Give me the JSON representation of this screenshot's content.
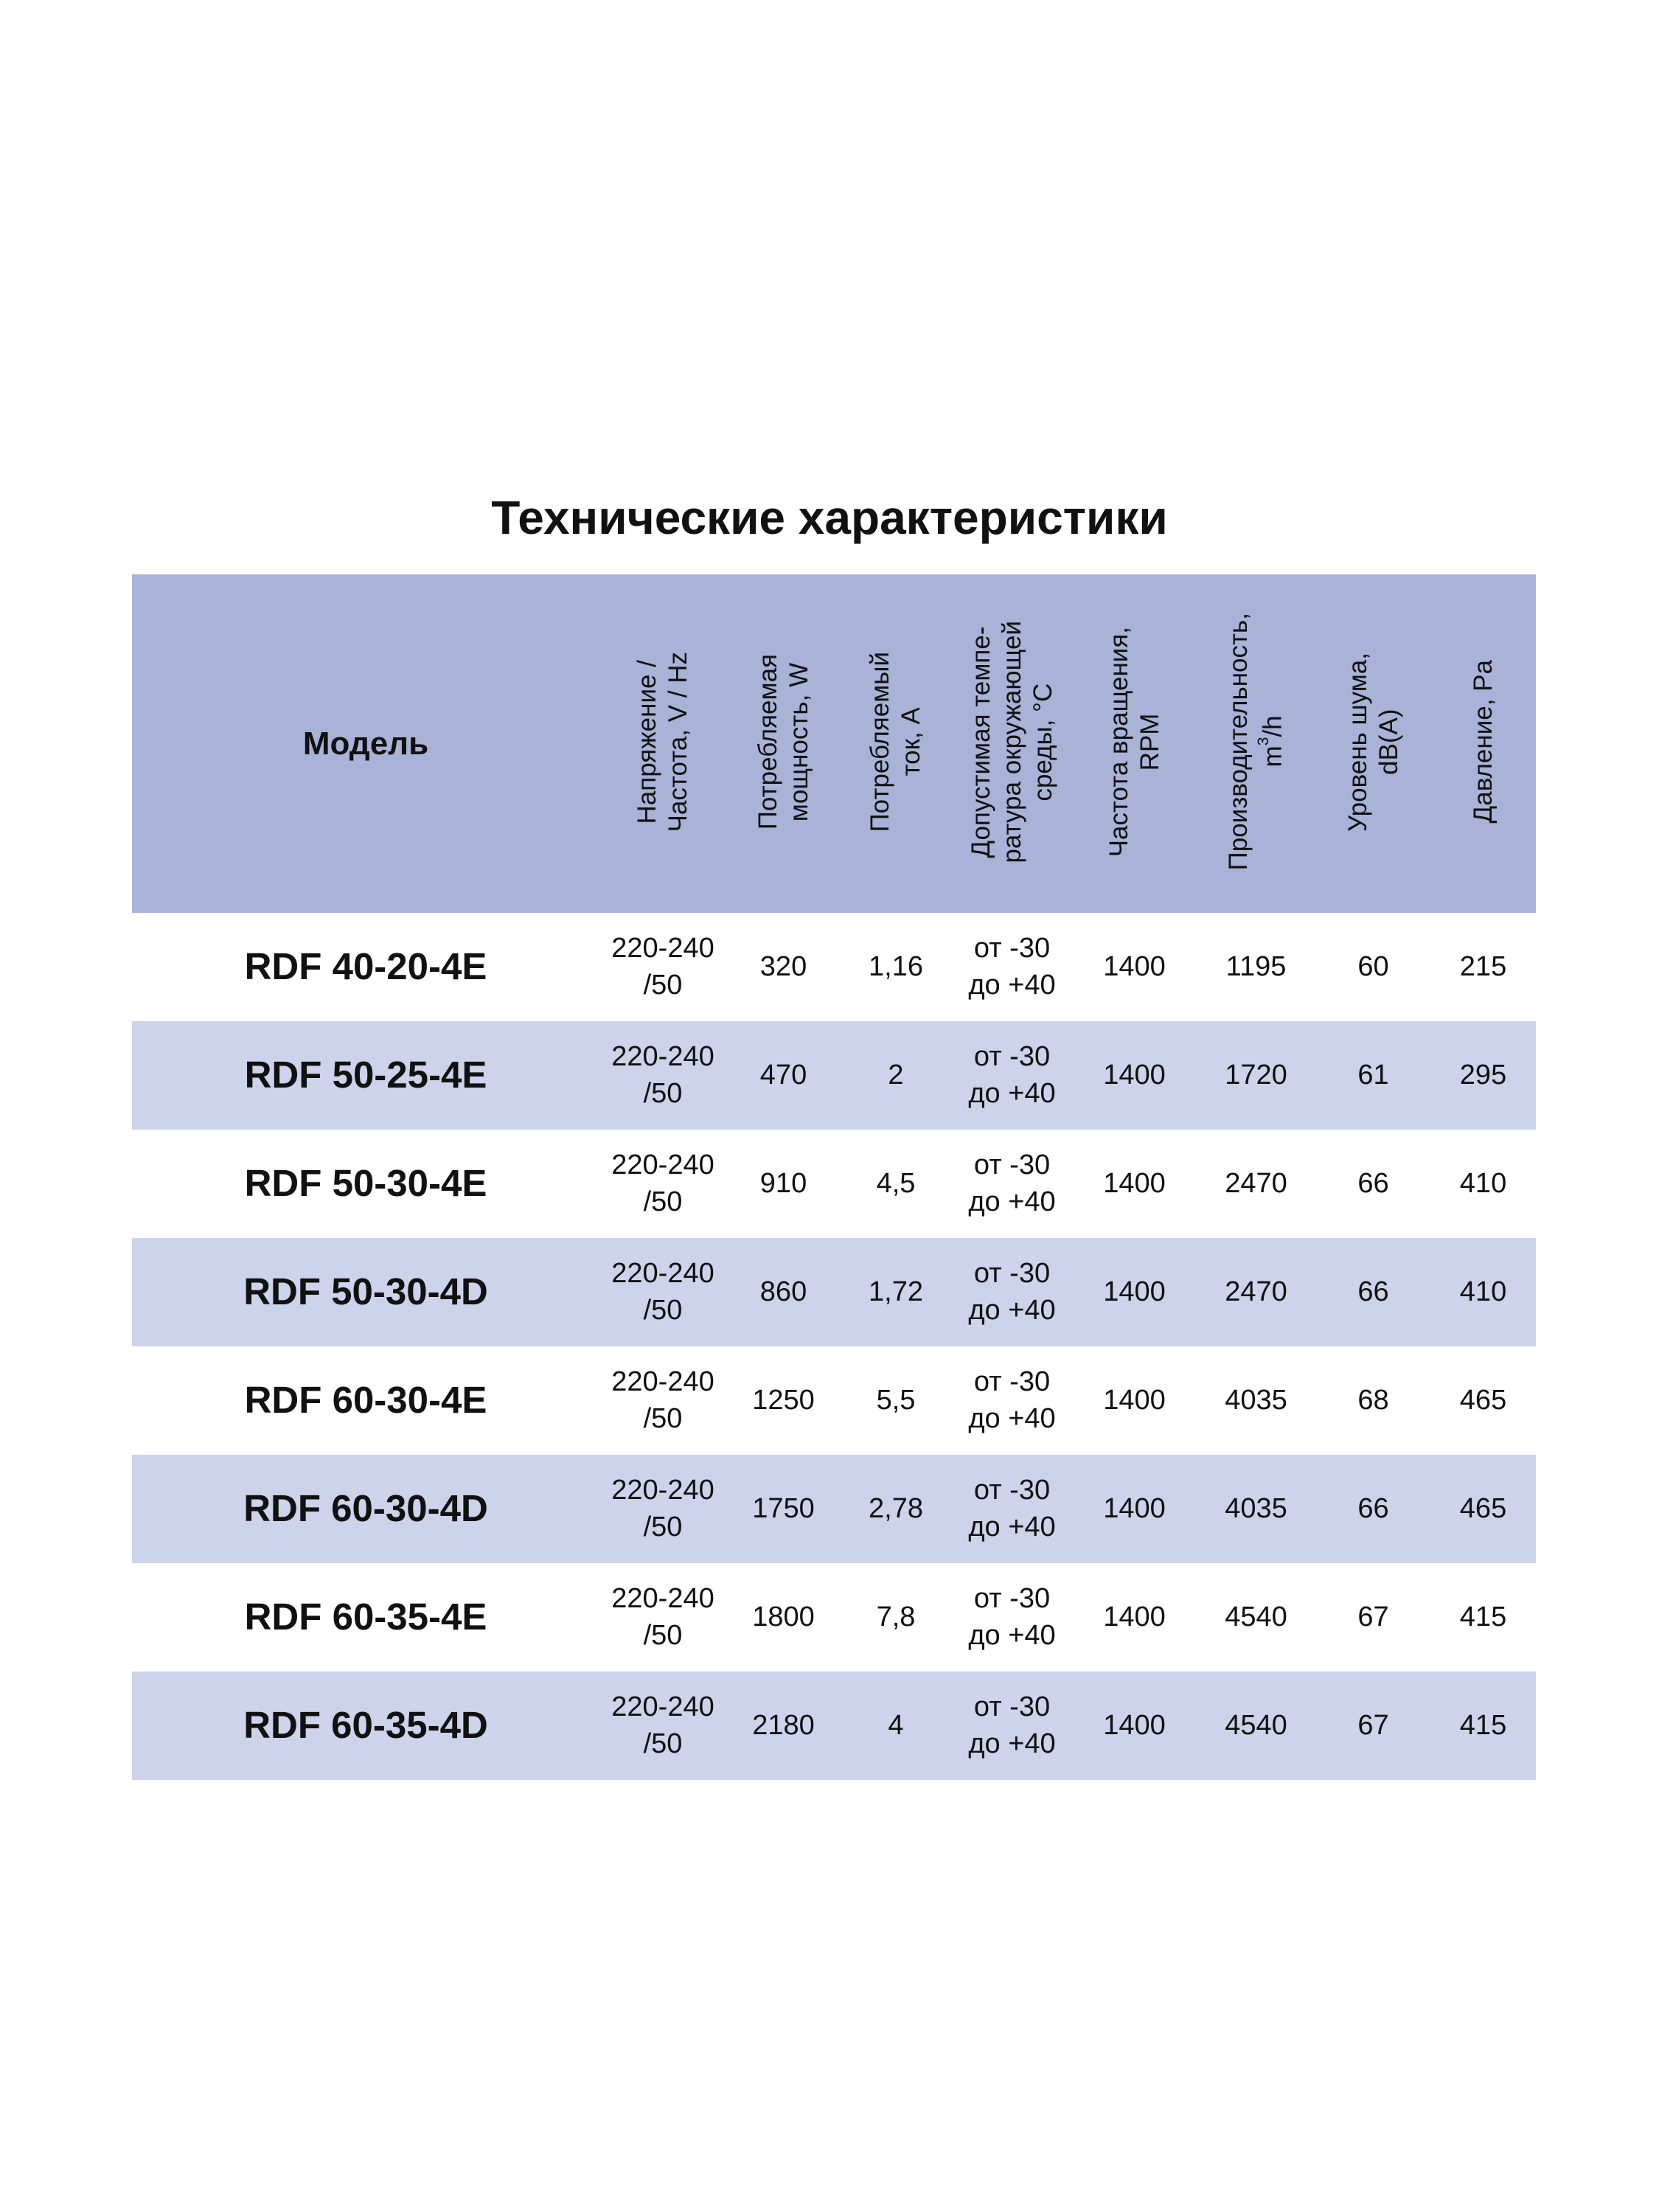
{
  "title": "Технические характеристики",
  "colors": {
    "header_bg": "#a8b3d7",
    "alt_row_bg": "#ccd3ea"
  },
  "columns": [
    {
      "label": "Модель"
    },
    {
      "line1": "Напряжение /",
      "line2": "Частота, V / Hz"
    },
    {
      "line1": "Потребляемая",
      "line2": "мощность, W"
    },
    {
      "line1": "Потребляемый",
      "line2": "ток, А"
    },
    {
      "line1": "Допустимая темпе-",
      "line2": "ратура окружающей",
      "line3": "среды, °С"
    },
    {
      "line1": "Частота вращения,",
      "line2": "RPM"
    },
    {
      "line1": "Производительность,",
      "line2a": "m",
      "sup": "3",
      "line2b": "/h"
    },
    {
      "line1": "Уровень шума,",
      "line2": "dB(A)"
    },
    {
      "line1": "Давление, Pa"
    }
  ],
  "rows": [
    {
      "model": "RDF 40-20-4E",
      "v1": "220-240",
      "v2": "/50",
      "power": "320",
      "current": "1,16",
      "t1": "от -30",
      "t2": "до +40",
      "rpm": "1400",
      "flow": "1195",
      "noise": "60",
      "pressure": "215"
    },
    {
      "model": "RDF 50-25-4E",
      "v1": "220-240",
      "v2": "/50",
      "power": "470",
      "current": "2",
      "t1": "от -30",
      "t2": "до +40",
      "rpm": "1400",
      "flow": "1720",
      "noise": "61",
      "pressure": "295"
    },
    {
      "model": "RDF 50-30-4E",
      "v1": "220-240",
      "v2": "/50",
      "power": "910",
      "current": "4,5",
      "t1": "от -30",
      "t2": "до +40",
      "rpm": "1400",
      "flow": "2470",
      "noise": "66",
      "pressure": "410"
    },
    {
      "model": "RDF 50-30-4D",
      "v1": "220-240",
      "v2": "/50",
      "power": "860",
      "current": "1,72",
      "t1": "от -30",
      "t2": "до +40",
      "rpm": "1400",
      "flow": "2470",
      "noise": "66",
      "pressure": "410"
    },
    {
      "model": "RDF 60-30-4E",
      "v1": "220-240",
      "v2": "/50",
      "power": "1250",
      "current": "5,5",
      "t1": "от -30",
      "t2": "до +40",
      "rpm": "1400",
      "flow": "4035",
      "noise": "68",
      "pressure": "465"
    },
    {
      "model": "RDF 60-30-4D",
      "v1": "220-240",
      "v2": "/50",
      "power": "1750",
      "current": "2,78",
      "t1": "от -30",
      "t2": "до +40",
      "rpm": "1400",
      "flow": "4035",
      "noise": "66",
      "pressure": "465"
    },
    {
      "model": "RDF 60-35-4E",
      "v1": "220-240",
      "v2": "/50",
      "power": "1800",
      "current": "7,8",
      "t1": "от -30",
      "t2": "до +40",
      "rpm": "1400",
      "flow": "4540",
      "noise": "67",
      "pressure": "415"
    },
    {
      "model": "RDF 60-35-4D",
      "v1": "220-240",
      "v2": "/50",
      "power": "2180",
      "current": "4",
      "t1": "от -30",
      "t2": "до +40",
      "rpm": "1400",
      "flow": "4540",
      "noise": "67",
      "pressure": "415"
    }
  ]
}
